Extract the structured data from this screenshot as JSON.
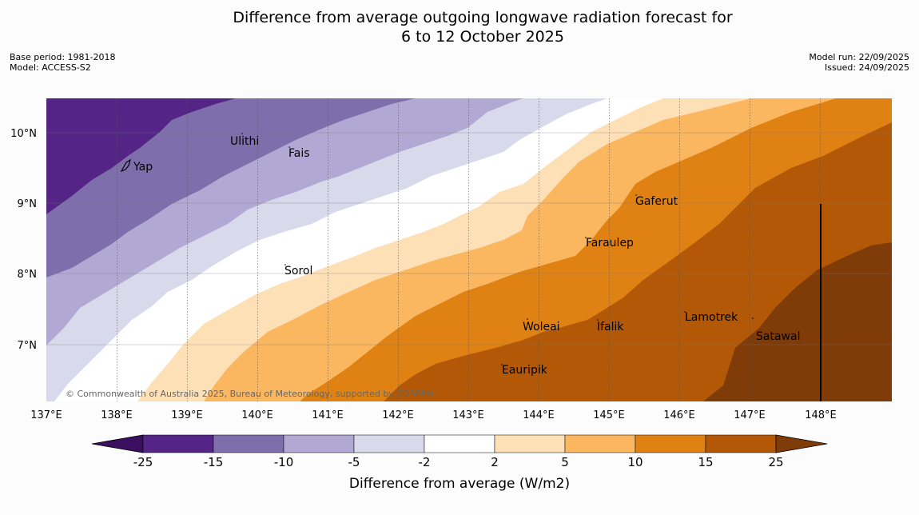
{
  "title": {
    "line1": "Difference from average outgoing longwave radiation forecast for",
    "line2": "6 to 12 October 2025"
  },
  "meta": {
    "base_period": "Base period: 1981-2018",
    "model": "Model: ACCESS-S2",
    "model_run": "Model run: 22/09/2025",
    "issued": "Issued: 24/09/2025"
  },
  "map": {
    "lon_labels": [
      "137°E",
      "138°E",
      "139°E",
      "140°E",
      "141°E",
      "142°E",
      "143°E",
      "144°E",
      "145°E",
      "146°E",
      "147°E",
      "148°E"
    ],
    "lat_labels": [
      "10°N",
      "9°N",
      "8°N",
      "7°N"
    ],
    "places": [
      "Yap",
      "Ulithi",
      "Fais",
      "Gaferut",
      "Faraulep",
      "Sorol",
      "Woleai",
      "Ifalik",
      "Lamotrek",
      "Satawal",
      "Eauripik"
    ],
    "copyright": "© Commonwealth of Australia 2025, Bureau of Meteorology, supported by COSPPac"
  },
  "colorbar": {
    "ticks": [
      "-25",
      "-15",
      "-10",
      "-5",
      "-2",
      "2",
      "5",
      "10",
      "15",
      "25"
    ],
    "title": "Difference from average (W/m2)",
    "colors": [
      "#3b1060",
      "#542586",
      "#7e6fac",
      "#b1a9d3",
      "#d8d9eb",
      "#ffffff",
      "#fee0b6",
      "#fbb660",
      "#e08213",
      "#b35806",
      "#7f3b08"
    ]
  }
}
